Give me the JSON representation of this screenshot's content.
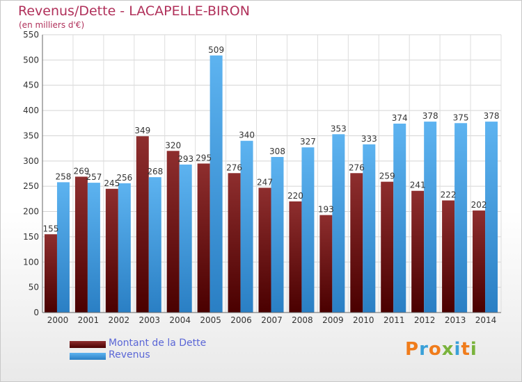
{
  "header": {
    "title": "Revenus/Dette - LACAPELLE-BIRON",
    "subtitle": "(en milliers d'€)"
  },
  "chart_data": {
    "type": "bar",
    "categories": [
      "2000",
      "2001",
      "2002",
      "2003",
      "2004",
      "2005",
      "2006",
      "2007",
      "2008",
      "2009",
      "2010",
      "2011",
      "2012",
      "2013",
      "2014"
    ],
    "series": [
      {
        "name": "Montant de la Dette",
        "color": "#7a1a1a",
        "values": [
          155,
          269,
          245,
          349,
          320,
          295,
          276,
          247,
          220,
          193,
          276,
          259,
          241,
          222,
          202
        ]
      },
      {
        "name": "Revenus",
        "color": "#4aa3e6",
        "values": [
          258,
          257,
          256,
          268,
          293,
          509,
          340,
          308,
          327,
          353,
          333,
          374,
          378,
          375,
          378
        ]
      }
    ],
    "ylim": [
      0,
      550
    ],
    "yticks": [
      0,
      50,
      100,
      150,
      200,
      250,
      300,
      350,
      400,
      450,
      500,
      550
    ],
    "grid": true,
    "legend_position": "bottom-left"
  },
  "legend": {
    "items": [
      {
        "label": "Montant de la Dette"
      },
      {
        "label": "Revenus"
      }
    ]
  },
  "logo": {
    "text": "Proxiti"
  }
}
